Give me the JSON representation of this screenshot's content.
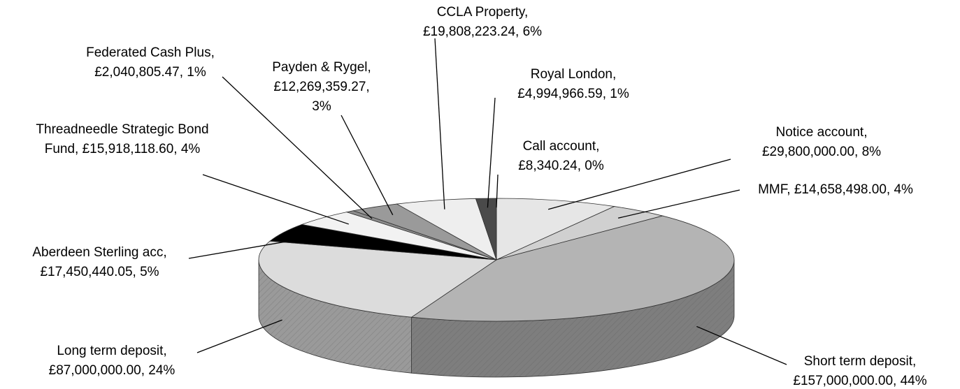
{
  "chart_data": {
    "type": "pie3d",
    "categories": [
      "Notice account,",
      "MMF,",
      "Short term deposit,",
      "Long term deposit,",
      "Aberdeen Sterling acc,",
      "Threadneedle Strategic Bond Fund,",
      "Federated Cash Plus,",
      "Payden & Rygel,",
      "CCLA Property,",
      "Royal London,",
      "Call account,"
    ],
    "values": [
      29800000.0,
      14658498.0,
      157000000.0,
      87000000.0,
      17450440.05,
      15918118.6,
      2040805.47,
      12269359.27,
      19808223.24,
      4994966.59,
      8340.24
    ],
    "value_labels": [
      "£29,800,000.00, 8%",
      "£14,658,498.00, 4%",
      "£157,000,000.00, 44%",
      "£87,000,000.00, 24%",
      "£17,450,440.05, 5%",
      "£15,918,118.60, 4%",
      "£2,040,805.47, 1%",
      "£12,269,359.27, 3%",
      "£19,808,223.24, 6%",
      "£4,994,966.59, 1%",
      "£8,340.24, 0%"
    ],
    "colors": [
      "#e6e6e6",
      "#d0d0d0",
      "#b4b4b4",
      "#dcdcdc",
      "#000000",
      "#f2f2f2",
      "#8c8c8c",
      "#9a9a9a",
      "#eeeeee",
      "#4a4a4a",
      "#777777"
    ]
  }
}
